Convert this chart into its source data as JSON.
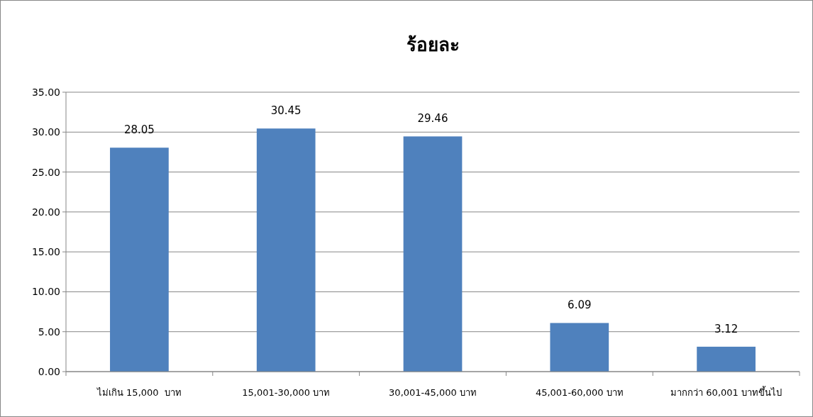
{
  "chart_data": {
    "type": "bar",
    "title": "ร้อยละ",
    "categories": [
      "ไม่เกิน 15,000  บาท",
      "15,001-30,000 บาท",
      "30,001-45,000 บาท",
      "45,001-60,000 บาท",
      "มากกว่า 60,001 บาทขึ้นไป"
    ],
    "values": [
      28.05,
      30.45,
      29.46,
      6.09,
      3.12
    ],
    "color": "#4f81bd",
    "ylim": [
      0,
      35
    ],
    "yticks": [
      {
        "value": 0,
        "label": "0.00"
      },
      {
        "value": 5,
        "label": "5.00"
      },
      {
        "value": 10,
        "label": "10.00"
      },
      {
        "value": 15,
        "label": "15.00"
      },
      {
        "value": 20,
        "label": "20.00"
      },
      {
        "value": 25,
        "label": "25.00"
      },
      {
        "value": 30,
        "label": "30.00"
      },
      {
        "value": 35,
        "label": "35.00"
      }
    ],
    "grid": "y",
    "data_labels": true
  }
}
